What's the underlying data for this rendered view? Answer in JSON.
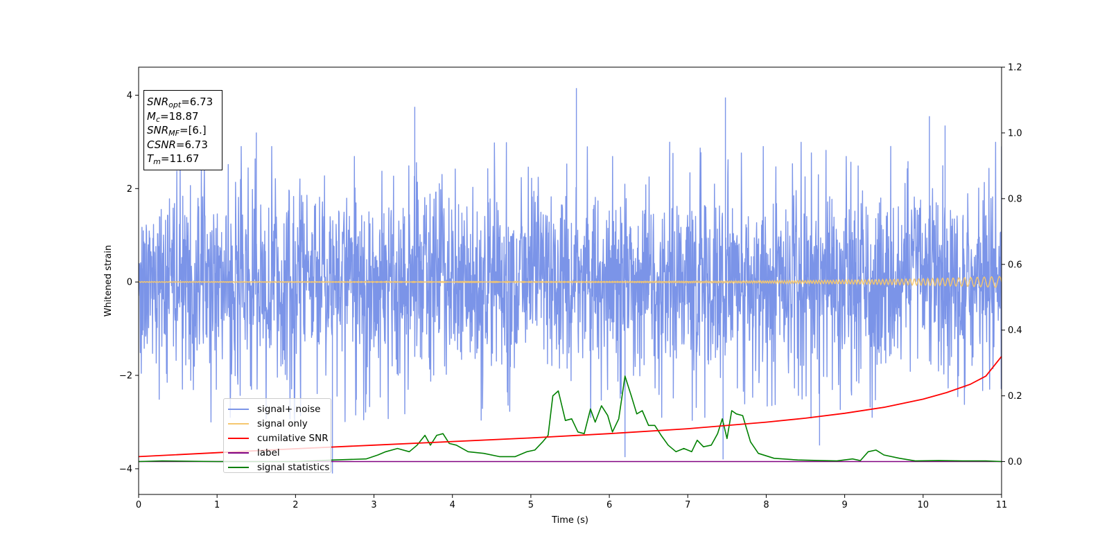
{
  "chart_data": {
    "type": "line",
    "title": "",
    "xlabel": "Time (s)",
    "ylabel": "Whitened strain",
    "y2label": "",
    "xlim": [
      0,
      11
    ],
    "ylim": [
      -4.55,
      4.6
    ],
    "y2lim": [
      -0.1,
      1.2
    ],
    "x_ticks": [
      "0",
      "1",
      "2",
      "3",
      "4",
      "5",
      "6",
      "7",
      "8",
      "9",
      "10",
      "11"
    ],
    "y_ticks": [
      "4",
      "2",
      "0",
      "−2",
      "−4"
    ],
    "y2_ticks": [
      "0.0",
      "0.2",
      "0.4",
      "0.6",
      "0.8",
      "1.0",
      "1.2"
    ],
    "grid": false,
    "legend_placement": "lower-left",
    "annotation": {
      "snr_opt": {
        "sym": "SNR",
        "sub": "opt",
        "value": "=6.73"
      },
      "mc": {
        "sym": "M",
        "sub": "c",
        "value": "=18.87"
      },
      "snr_mf": {
        "sym": "SNR",
        "sub": "MF",
        "value": "=[6.]"
      },
      "csnr": {
        "sym": "CSNR",
        "value": "=6.73"
      },
      "tm": {
        "sym": "T",
        "sub": "m",
        "value": "=11.67"
      }
    },
    "series": [
      {
        "name": "signal+ noise",
        "color": "#7b94e8",
        "axis": "left",
        "description": "whitened noise with peaks around ±2.5 to ±4",
        "notable_peaks": [
          [
            1.5,
            3.2
          ],
          [
            3.52,
            3.75
          ],
          [
            5.58,
            4.15
          ],
          [
            7.48,
            3.95
          ],
          [
            10.08,
            3.55
          ],
          [
            10.28,
            3.35
          ],
          [
            2.47,
            -4.1
          ],
          [
            6.2,
            -3.75
          ],
          [
            7.45,
            -3.8
          ],
          [
            8.68,
            -3.5
          ]
        ]
      },
      {
        "name": "signal only",
        "color": "#f5c76e",
        "axis": "left",
        "description": "chirp with amplitude rising from ~0.01 to ~0.12 at t=11"
      },
      {
        "name": "cumilative SNR",
        "color": "#ff0000",
        "axis": "right",
        "x": [
          0,
          1,
          2,
          3,
          4,
          5,
          6,
          7,
          8,
          8.5,
          9,
          9.5,
          10,
          10.3,
          10.6,
          10.8,
          11
        ],
        "y": [
          0.015,
          0.027,
          0.039,
          0.05,
          0.061,
          0.072,
          0.085,
          0.1,
          0.12,
          0.132,
          0.147,
          0.165,
          0.19,
          0.21,
          0.235,
          0.26,
          0.32
        ]
      },
      {
        "name": "label",
        "color": "#800080",
        "axis": "right",
        "x": [
          0,
          11
        ],
        "y": [
          0.0,
          0.0
        ]
      },
      {
        "name": "signal statistics",
        "color": "#008000",
        "axis": "right",
        "x": [
          0,
          0.3,
          1,
          2,
          2.5,
          2.9,
          3.05,
          3.15,
          3.3,
          3.45,
          3.55,
          3.65,
          3.72,
          3.8,
          3.88,
          3.96,
          4.05,
          4.2,
          4.4,
          4.6,
          4.8,
          4.95,
          5.05,
          5.15,
          5.22,
          5.28,
          5.35,
          5.44,
          5.52,
          5.6,
          5.68,
          5.76,
          5.82,
          5.9,
          5.98,
          6.04,
          6.12,
          6.2,
          6.28,
          6.35,
          6.42,
          6.5,
          6.58,
          6.66,
          6.75,
          6.85,
          6.95,
          7.05,
          7.12,
          7.2,
          7.3,
          7.38,
          7.44,
          7.5,
          7.56,
          7.62,
          7.7,
          7.8,
          7.9,
          8.1,
          8.4,
          8.7,
          8.9,
          9.1,
          9.2,
          9.3,
          9.4,
          9.5,
          9.7,
          9.9,
          10.2,
          10.5,
          10.8,
          11
        ],
        "y": [
          0.0,
          0.002,
          0.0,
          0.0,
          0.005,
          0.008,
          0.02,
          0.03,
          0.04,
          0.03,
          0.05,
          0.08,
          0.05,
          0.08,
          0.085,
          0.055,
          0.05,
          0.03,
          0.025,
          0.015,
          0.015,
          0.03,
          0.035,
          0.06,
          0.08,
          0.2,
          0.215,
          0.125,
          0.13,
          0.09,
          0.085,
          0.16,
          0.12,
          0.17,
          0.14,
          0.09,
          0.13,
          0.26,
          0.2,
          0.145,
          0.155,
          0.11,
          0.11,
          0.08,
          0.05,
          0.03,
          0.04,
          0.03,
          0.065,
          0.045,
          0.05,
          0.085,
          0.13,
          0.07,
          0.155,
          0.145,
          0.14,
          0.06,
          0.025,
          0.01,
          0.005,
          0.003,
          0.002,
          0.008,
          0.003,
          0.03,
          0.035,
          0.02,
          0.01,
          0.002,
          0.003,
          0.002,
          0.002,
          0.0
        ]
      }
    ]
  }
}
